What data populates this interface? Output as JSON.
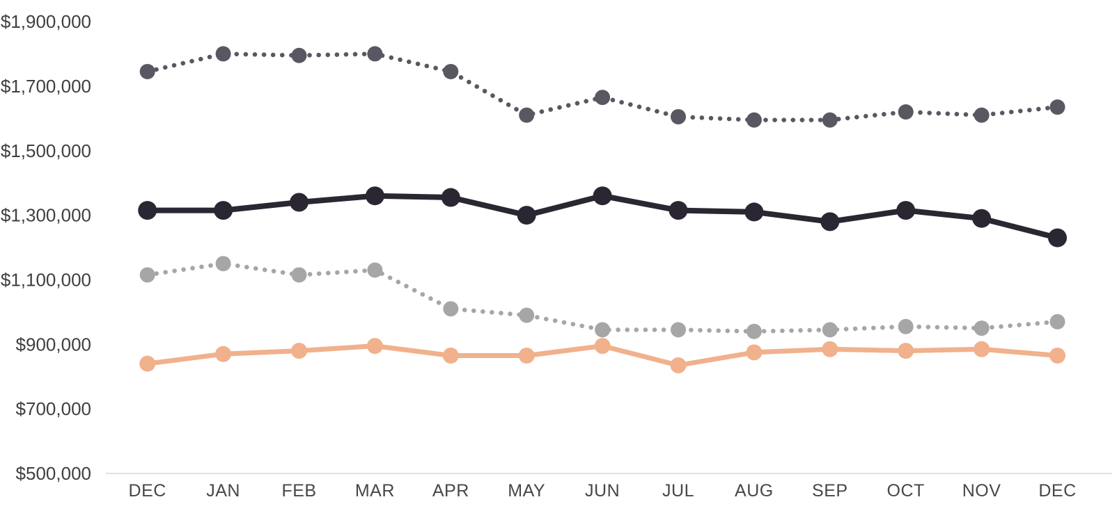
{
  "chart_data": {
    "type": "line",
    "title": "",
    "xlabel": "",
    "ylabel": "",
    "grid": "none",
    "legend": "none",
    "categories": [
      "DEC",
      "JAN",
      "FEB",
      "MAR",
      "APR",
      "MAY",
      "JUN",
      "JUL",
      "AUG",
      "SEP",
      "OCT",
      "NOV",
      "DEC"
    ],
    "series": [
      {
        "name": "dark-dotted",
        "style": "dotted",
        "color": "#595761",
        "line_width": 6.5,
        "marker_radius": 11,
        "values": [
          1745000,
          1800000,
          1795000,
          1800000,
          1745000,
          1610000,
          1665000,
          1605000,
          1595000,
          1595000,
          1620000,
          1610000,
          1635000
        ]
      },
      {
        "name": "black-solid",
        "style": "solid",
        "color": "#2a2733",
        "line_width": 8,
        "marker_radius": 13.5,
        "values": [
          1315000,
          1315000,
          1340000,
          1360000,
          1355000,
          1300000,
          1360000,
          1315000,
          1310000,
          1280000,
          1315000,
          1290000,
          1230000
        ]
      },
      {
        "name": "gray-dotted",
        "style": "dotted",
        "color": "#a6a6a6",
        "line_width": 6.5,
        "marker_radius": 11,
        "values": [
          1115000,
          1150000,
          1115000,
          1130000,
          1010000,
          990000,
          945000,
          945000,
          940000,
          945000,
          955000,
          950000,
          970000
        ]
      },
      {
        "name": "peach-solid",
        "style": "solid",
        "color": "#f0b18c",
        "line_width": 7,
        "marker_radius": 11.5,
        "values": [
          840000,
          870000,
          880000,
          895000,
          865000,
          865000,
          895000,
          835000,
          875000,
          885000,
          880000,
          885000,
          865000
        ]
      }
    ],
    "y_axis": {
      "min": 500000,
      "max": 1900000,
      "step": 200000,
      "tick_labels": [
        "$500,000",
        "$700,000",
        "$900,000",
        "$1,100,000",
        "$1,300,000",
        "$1,500,000",
        "$1,700,000",
        "$1,900,000"
      ]
    },
    "axis_line_color": "#d9d9d9",
    "label_color": "#3f3f3f"
  }
}
